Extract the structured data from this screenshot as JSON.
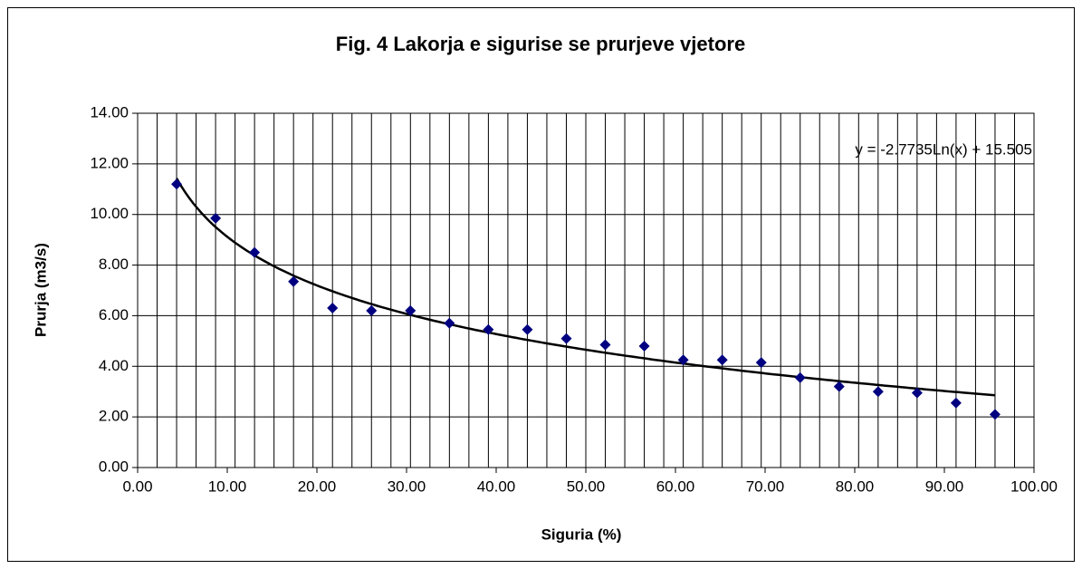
{
  "chart_data": {
    "type": "scatter",
    "title": "Fig. 4 Lakorja e sigurise se prurjeve vjetore",
    "x_label": "Siguria (%)",
    "y_label": "Prurja (m3/s)",
    "series": [
      {
        "name": "Prurja",
        "color": "#000080",
        "x": [
          4.35,
          8.7,
          13.04,
          17.39,
          21.74,
          26.09,
          30.43,
          34.78,
          39.13,
          43.48,
          47.83,
          52.17,
          56.52,
          60.87,
          65.22,
          69.57,
          73.91,
          78.26,
          82.61,
          86.96,
          91.3,
          95.65
        ],
        "values": [
          11.2,
          9.85,
          8.5,
          7.35,
          6.3,
          6.2,
          6.2,
          5.7,
          5.45,
          5.45,
          5.1,
          4.85,
          4.8,
          4.25,
          4.25,
          4.15,
          3.55,
          3.2,
          3.0,
          2.95,
          2.55,
          2.1
        ]
      }
    ],
    "trendline": {
      "type": "log",
      "a": -2.7735,
      "b": 15.505,
      "color": "#000000",
      "label": "y = -2.7735Ln(x) + 15.505"
    },
    "xlim": [
      0,
      100
    ],
    "xticks": [
      {
        "value": 0,
        "label": "0.00"
      },
      {
        "value": 10,
        "label": "10.00"
      },
      {
        "value": 20,
        "label": "20.00"
      },
      {
        "value": 30,
        "label": "30.00"
      },
      {
        "value": 40,
        "label": "40.00"
      },
      {
        "value": 50,
        "label": "50.00"
      },
      {
        "value": 60,
        "label": "60.00"
      },
      {
        "value": 70,
        "label": "70.00"
      },
      {
        "value": 80,
        "label": "80.00"
      },
      {
        "value": 90,
        "label": "90.00"
      },
      {
        "value": 100,
        "label": "100.00"
      }
    ],
    "ylim": [
      0,
      14
    ],
    "yticks": [
      {
        "value": 0,
        "label": "0.00"
      },
      {
        "value": 2,
        "label": "2.00"
      },
      {
        "value": 4,
        "label": "4.00"
      },
      {
        "value": 6,
        "label": "6.00"
      },
      {
        "value": 8,
        "label": "8.00"
      },
      {
        "value": 10,
        "label": "10.00"
      },
      {
        "value": 12,
        "label": "12.00"
      },
      {
        "value": 14,
        "label": "14.00"
      }
    ],
    "grid": true,
    "x_minor_divisions": 46
  }
}
